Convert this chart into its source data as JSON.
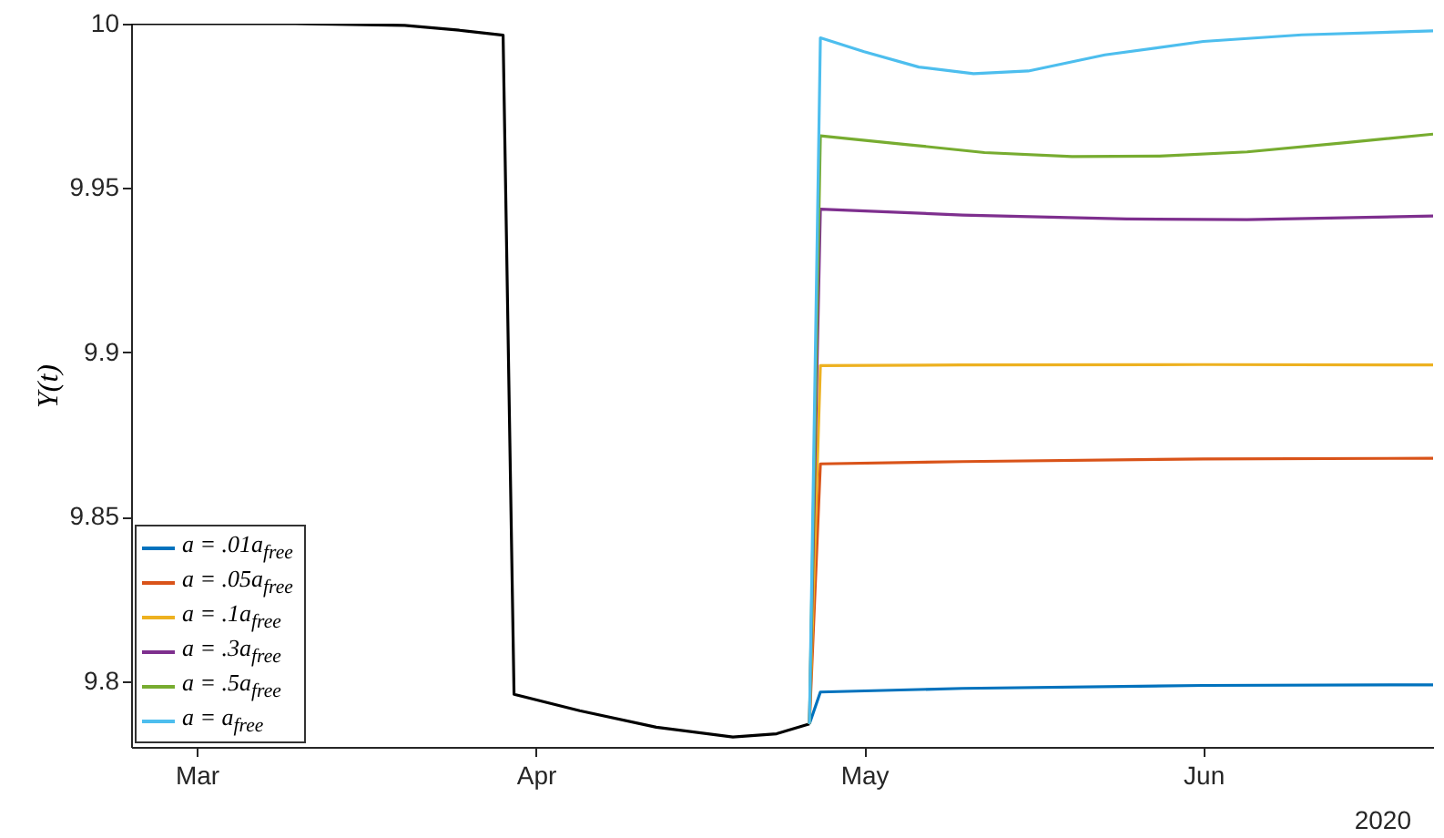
{
  "chart_data": {
    "type": "line",
    "ylabel": "Y(t)",
    "xlim": [
      "2020-02-24",
      "2020-06-22"
    ],
    "ylim": [
      9.78,
      10
    ],
    "xticks": [
      {
        "value": "2020-03-01",
        "label": "Mar"
      },
      {
        "value": "2020-04-01",
        "label": "Apr"
      },
      {
        "value": "2020-05-01",
        "label": "May"
      },
      {
        "value": "2020-06-01",
        "label": "Jun"
      }
    ],
    "yticks": [
      9.8,
      9.85,
      9.9,
      9.95,
      10
    ],
    "grid": false,
    "legend": "bottom left",
    "annotations": [
      "2020"
    ],
    "series": [
      {
        "color": "#000000",
        "x": [
          "2020-02-24",
          "2020-03-10",
          "2020-03-20",
          "2020-03-25",
          "2020-03-29",
          "2020-03-30",
          "2020-04-05",
          "2020-04-12",
          "2020-04-19",
          "2020-04-23",
          "2020-04-26"
        ],
        "values": [
          10,
          10,
          9.9995,
          9.998,
          9.9965,
          9.796,
          9.791,
          9.786,
          9.783,
          9.784,
          9.787
        ]
      },
      {
        "name": "a = .01a$_{free}$",
        "color": "#0072bd",
        "x": [
          "2020-04-26",
          "2020-04-27",
          "2020-05-10",
          "2020-06-01",
          "2020-06-22"
        ],
        "values": [
          9.787,
          9.7967,
          9.7978,
          9.7987,
          9.7989
        ]
      },
      {
        "name": "a = .05a$_{free}$",
        "color": "#d95319",
        "x": [
          "2020-04-26",
          "2020-04-27",
          "2020-05-10",
          "2020-06-01",
          "2020-06-22"
        ],
        "values": [
          9.787,
          9.8661,
          9.8668,
          9.8676,
          9.8678
        ]
      },
      {
        "name": "a = .1a$_{free}$",
        "color": "#edb120",
        "x": [
          "2020-04-26",
          "2020-04-27",
          "2020-05-10",
          "2020-06-01",
          "2020-06-22"
        ],
        "values": [
          9.787,
          9.896,
          9.8962,
          9.8963,
          9.8962
        ]
      },
      {
        "name": "a = .3a$_{free}$",
        "color": "#7e2f8e",
        "x": [
          "2020-04-26",
          "2020-04-27",
          "2020-05-10",
          "2020-05-25",
          "2020-06-05",
          "2020-06-22"
        ],
        "values": [
          9.787,
          9.9436,
          9.9418,
          9.9406,
          9.9404,
          9.9415
        ]
      },
      {
        "name": "a = .5a$_{free}$",
        "color": "#77ac30",
        "x": [
          "2020-04-26",
          "2020-04-27",
          "2020-05-05",
          "2020-05-12",
          "2020-05-20",
          "2020-05-28",
          "2020-06-05",
          "2020-06-14",
          "2020-06-22"
        ],
        "values": [
          9.787,
          9.9659,
          9.9632,
          9.9608,
          9.9596,
          9.9597,
          9.961,
          9.9638,
          9.9664
        ]
      },
      {
        "name": "a = a$_{free}$",
        "color": "#4dbeee",
        "x": [
          "2020-04-26",
          "2020-04-27",
          "2020-05-01",
          "2020-05-06",
          "2020-05-11",
          "2020-05-16",
          "2020-05-23",
          "2020-06-01",
          "2020-06-10",
          "2020-06-22"
        ],
        "values": [
          9.787,
          9.9957,
          9.9915,
          9.9868,
          9.9848,
          9.9856,
          9.9905,
          9.9946,
          9.9966,
          9.9978
        ]
      }
    ]
  }
}
